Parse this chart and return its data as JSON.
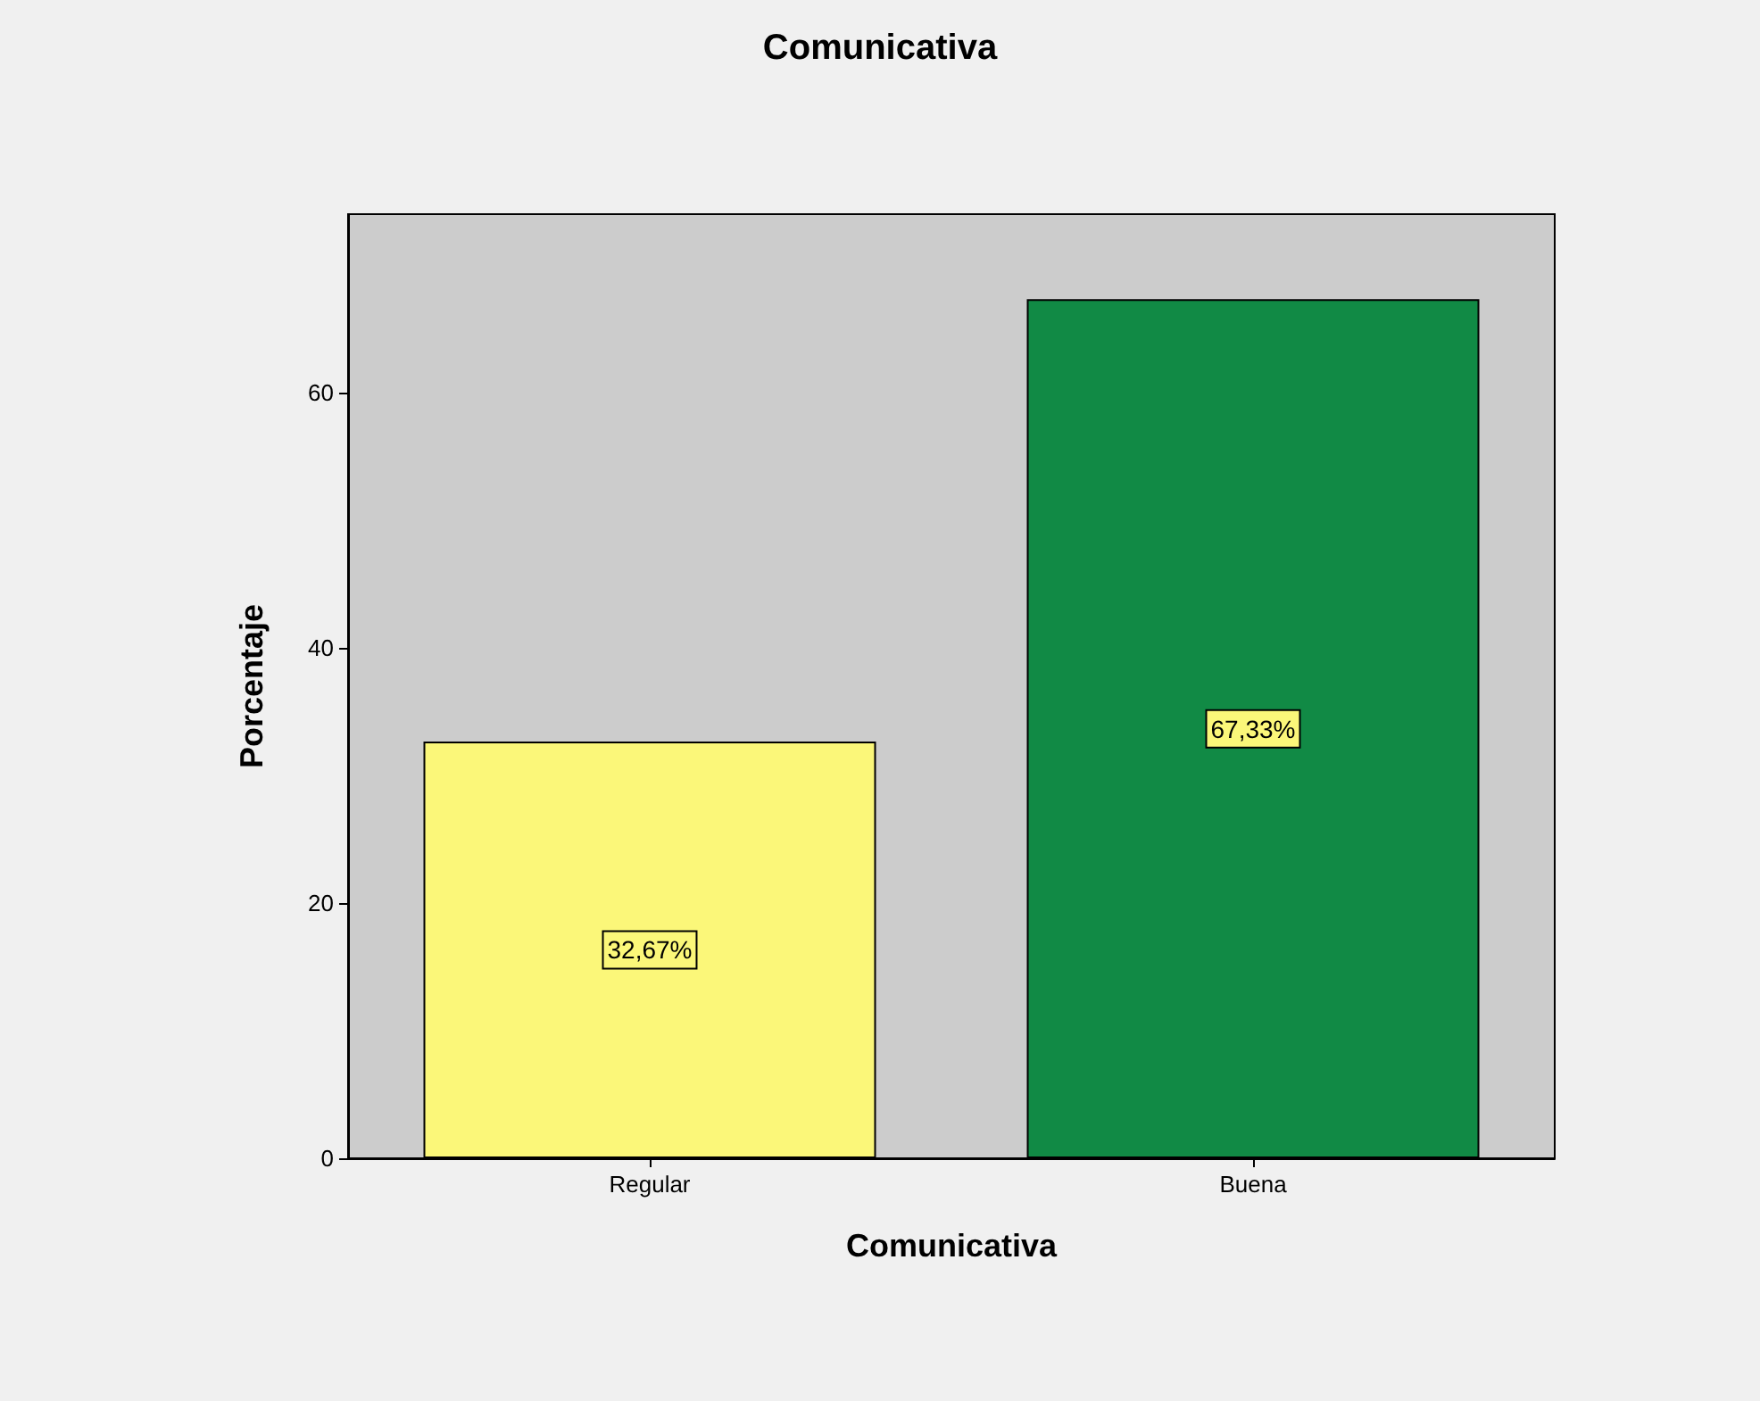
{
  "chart_data": {
    "type": "bar",
    "title": "Comunicativa",
    "xlabel": "Comunicativa",
    "ylabel": "Porcentaje",
    "categories": [
      "Regular",
      "Buena"
    ],
    "values": [
      32.67,
      67.33
    ],
    "colors": [
      "#fbf779",
      "#118a45"
    ],
    "value_labels": [
      "32,67%",
      "67,33%"
    ],
    "ylim": [
      0,
      74
    ],
    "yticks": [
      0,
      20,
      40,
      60
    ],
    "grid": false
  }
}
